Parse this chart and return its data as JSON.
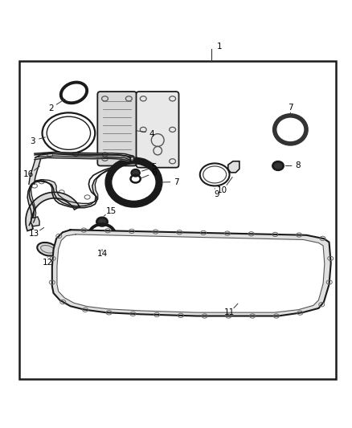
{
  "bg_color": "#ffffff",
  "border_color": "#1a1a1a",
  "lc": "#1a1a1a",
  "figw": 4.38,
  "figh": 5.33,
  "dpi": 100,
  "border": [
    0.055,
    0.03,
    0.9,
    0.905
  ]
}
